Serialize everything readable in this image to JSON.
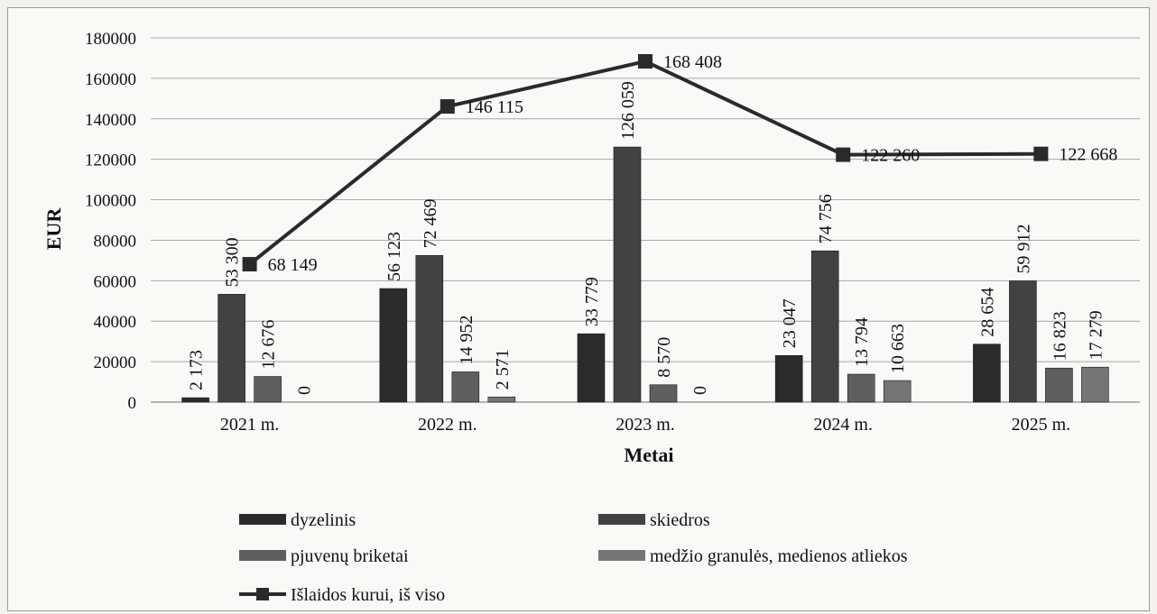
{
  "chart_data": {
    "type": "bar",
    "xlabel": "Metai",
    "ylabel": "EUR",
    "ylim": [
      0,
      180000
    ],
    "yticks": [
      0,
      20000,
      40000,
      60000,
      80000,
      100000,
      120000,
      140000,
      160000,
      180000
    ],
    "grid": true,
    "legend_position": "bottom",
    "categories": [
      "2021 m.",
      "2022 m.",
      "2023 m.",
      "2024 m.",
      "2025 m."
    ],
    "series": [
      {
        "name": "dyzelinis",
        "kind": "bar",
        "color": "#2b2b2b",
        "values": [
          2173,
          56123,
          33779,
          23047,
          28654
        ],
        "labels": [
          "2 173",
          "56 123",
          "33 779",
          "23 047",
          "28 654"
        ]
      },
      {
        "name": "skiedros",
        "kind": "bar",
        "color": "#424242",
        "values": [
          53300,
          72469,
          126059,
          74756,
          59912
        ],
        "labels": [
          "53 300",
          "72 469",
          "126 059",
          "74 756",
          "59 912"
        ]
      },
      {
        "name": "pjuvenų briketai",
        "kind": "bar",
        "color": "#5f5f5f",
        "values": [
          12676,
          14952,
          8570,
          13794,
          16823
        ],
        "labels": [
          "12 676",
          "14 952",
          "8 570",
          "13 794",
          "16 823"
        ]
      },
      {
        "name": "medžio granulės, medienos atliekos",
        "kind": "bar",
        "color": "#757575",
        "values": [
          0,
          2571,
          0,
          10663,
          17279
        ],
        "labels": [
          "0",
          "2 571",
          "0",
          "10 663",
          "17 279"
        ]
      },
      {
        "name": "Išlaidos kurui, iš viso",
        "kind": "line",
        "color": "#2a2a2a",
        "values": [
          68149,
          146115,
          168408,
          122260,
          122668
        ],
        "labels": [
          "68 149",
          "146 115",
          "168 408",
          "122 260",
          "122 668"
        ]
      }
    ]
  }
}
